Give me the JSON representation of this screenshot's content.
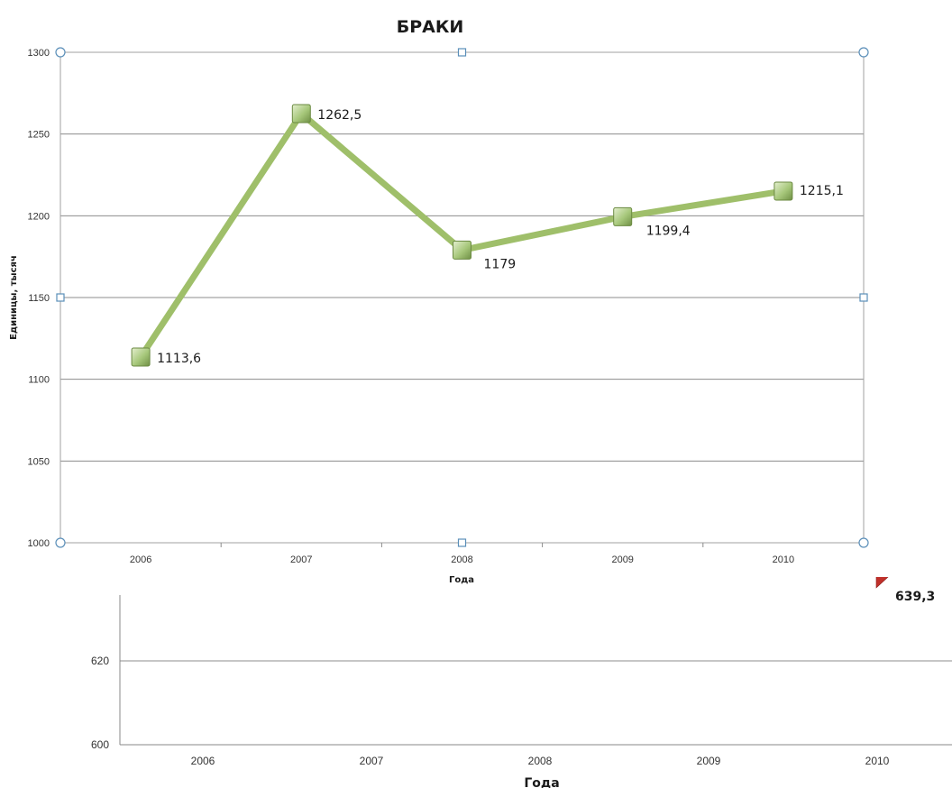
{
  "chart_data": [
    {
      "type": "line",
      "title": "БРАКИ",
      "xlabel": "Года",
      "ylabel": "Единицы, тысяч",
      "categories": [
        "2006",
        "2007",
        "2008",
        "2009",
        "2010"
      ],
      "values": [
        1113.6,
        1262.5,
        1179,
        1199.4,
        1215.1
      ],
      "data_labels": [
        "1113,6",
        "1262,5",
        "1179",
        "1199,4",
        "1215,1"
      ],
      "ylim": [
        1000,
        1300
      ],
      "yticks": [
        "1000",
        "1050",
        "1100",
        "1150",
        "1200",
        "1250",
        "1300"
      ],
      "grid": true,
      "line_color": "#9fbf6a",
      "marker_color": "#a6c77a"
    },
    {
      "type": "line",
      "xlabel": "Года",
      "categories": [
        "2006",
        "2007",
        "2008",
        "2009",
        "2010"
      ],
      "ylim": [
        600,
        640
      ],
      "yticks": [
        "600",
        "620"
      ],
      "visible_point": {
        "category": "2010",
        "value": 639.3,
        "label": "639,3"
      },
      "grid": true,
      "marker_color": "#c0302a"
    }
  ]
}
